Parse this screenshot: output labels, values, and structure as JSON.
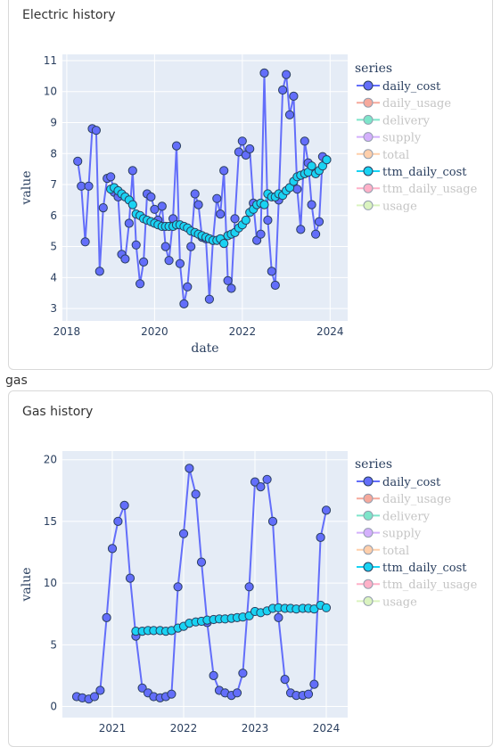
{
  "electric": {
    "title": "Electric history"
  },
  "gas": {
    "section_label": "gas",
    "title": "Gas history"
  },
  "legend": {
    "title": "series",
    "items": [
      {
        "name": "daily_cost",
        "color": "#636efa",
        "active": true
      },
      {
        "name": "daily_usage",
        "color": "#ef553b",
        "active": false
      },
      {
        "name": "delivery",
        "color": "#00cc96",
        "active": false
      },
      {
        "name": "supply",
        "color": "#ab63fa",
        "active": false
      },
      {
        "name": "total",
        "color": "#ffa15a",
        "active": false
      },
      {
        "name": "ttm_daily_cost",
        "color": "#19d3f3",
        "active": true
      },
      {
        "name": "ttm_daily_usage",
        "color": "#ff6692",
        "active": false
      },
      {
        "name": "usage",
        "color": "#b6e880",
        "active": false
      }
    ]
  },
  "chart_data": [
    {
      "type": "line",
      "title": "Electric history",
      "xlabel": "date",
      "ylabel": "value",
      "xlim": [
        2017.9,
        2024.4
      ],
      "ylim": [
        2.6,
        11.2
      ],
      "xticks": [
        2018,
        2020,
        2022,
        2024
      ],
      "yticks": [
        3,
        4,
        5,
        6,
        7,
        8,
        9,
        10,
        11
      ],
      "plot_bg": "#e5ecf6",
      "legend_position": "right",
      "series": [
        {
          "name": "daily_cost",
          "color": "#636efa",
          "x": [
            2018.25,
            2018.33,
            2018.42,
            2018.5,
            2018.58,
            2018.67,
            2018.75,
            2018.83,
            2018.92,
            2019.0,
            2019.08,
            2019.17,
            2019.25,
            2019.33,
            2019.42,
            2019.5,
            2019.58,
            2019.67,
            2019.75,
            2019.83,
            2019.92,
            2020.0,
            2020.08,
            2020.17,
            2020.25,
            2020.33,
            2020.42,
            2020.5,
            2020.58,
            2020.67,
            2020.75,
            2020.83,
            2020.92,
            2021.0,
            2021.08,
            2021.17,
            2021.25,
            2021.33,
            2021.42,
            2021.5,
            2021.58,
            2021.67,
            2021.75,
            2021.83,
            2021.92,
            2022.0,
            2022.08,
            2022.17,
            2022.25,
            2022.33,
            2022.42,
            2022.5,
            2022.58,
            2022.67,
            2022.75,
            2022.83,
            2022.92,
            2023.0,
            2023.08,
            2023.17,
            2023.25,
            2023.33,
            2023.42,
            2023.5,
            2023.58,
            2023.67,
            2023.75,
            2023.83,
            2023.92
          ],
          "values": [
            7.75,
            6.95,
            5.15,
            6.95,
            8.8,
            8.75,
            4.2,
            6.25,
            7.2,
            7.25,
            6.75,
            6.6,
            4.75,
            4.6,
            5.75,
            7.45,
            5.05,
            3.8,
            4.5,
            6.7,
            6.6,
            6.2,
            5.85,
            6.3,
            5.0,
            4.55,
            5.9,
            8.25,
            4.45,
            3.15,
            3.7,
            5.0,
            6.7,
            6.35,
            5.3,
            5.25,
            3.3,
            5.2,
            6.55,
            6.05,
            7.45,
            3.9,
            3.65,
            5.9,
            8.05,
            8.4,
            7.95,
            8.15,
            6.4,
            5.2,
            5.4,
            10.6,
            5.85,
            4.2,
            3.75,
            6.5,
            10.05,
            10.55,
            9.25,
            9.85,
            6.85,
            5.55,
            8.4,
            7.7,
            6.35,
            5.4,
            5.8,
            7.9,
            7.8
          ]
        },
        {
          "name": "ttm_daily_cost",
          "color": "#19d3f3",
          "x": [
            2019.0,
            2019.08,
            2019.17,
            2019.25,
            2019.33,
            2019.42,
            2019.5,
            2019.58,
            2019.67,
            2019.75,
            2019.83,
            2019.92,
            2020.0,
            2020.08,
            2020.17,
            2020.25,
            2020.33,
            2020.42,
            2020.5,
            2020.58,
            2020.67,
            2020.75,
            2020.83,
            2020.92,
            2021.0,
            2021.08,
            2021.17,
            2021.25,
            2021.33,
            2021.42,
            2021.5,
            2021.58,
            2021.67,
            2021.75,
            2021.83,
            2021.92,
            2022.0,
            2022.08,
            2022.17,
            2022.25,
            2022.33,
            2022.42,
            2022.5,
            2022.58,
            2022.67,
            2022.75,
            2022.83,
            2022.92,
            2023.0,
            2023.08,
            2023.17,
            2023.25,
            2023.33,
            2023.42,
            2023.5,
            2023.58,
            2023.67,
            2023.75,
            2023.83,
            2023.92
          ],
          "values": [
            6.85,
            6.9,
            6.8,
            6.7,
            6.6,
            6.5,
            6.35,
            6.05,
            6.0,
            5.9,
            5.85,
            5.8,
            5.75,
            5.7,
            5.65,
            5.65,
            5.65,
            5.65,
            5.7,
            5.7,
            5.65,
            5.6,
            5.5,
            5.45,
            5.4,
            5.35,
            5.3,
            5.25,
            5.2,
            5.2,
            5.25,
            5.1,
            5.35,
            5.4,
            5.45,
            5.6,
            5.7,
            5.85,
            6.1,
            6.2,
            6.35,
            6.4,
            6.35,
            6.7,
            6.6,
            6.6,
            6.7,
            6.65,
            6.8,
            6.9,
            7.1,
            7.25,
            7.3,
            7.35,
            7.4,
            7.6,
            7.35,
            7.45,
            7.6,
            7.8
          ]
        }
      ]
    },
    {
      "type": "line",
      "title": "Gas history",
      "xlabel": "",
      "ylabel": "value",
      "xlim": [
        2020.3,
        2024.3
      ],
      "ylim": [
        -0.9,
        20.7
      ],
      "xticks": [
        2021,
        2022,
        2023,
        2024
      ],
      "yticks": [
        0,
        5,
        10,
        15,
        20
      ],
      "plot_bg": "#e5ecf6",
      "legend_position": "right",
      "series": [
        {
          "name": "daily_cost",
          "color": "#636efa",
          "x": [
            2020.5,
            2020.58,
            2020.67,
            2020.75,
            2020.83,
            2020.92,
            2021.0,
            2021.08,
            2021.17,
            2021.25,
            2021.33,
            2021.42,
            2021.5,
            2021.58,
            2021.67,
            2021.75,
            2021.83,
            2021.92,
            2022.0,
            2022.08,
            2022.17,
            2022.25,
            2022.33,
            2022.42,
            2022.5,
            2022.58,
            2022.67,
            2022.75,
            2022.83,
            2022.92,
            2023.0,
            2023.08,
            2023.17,
            2023.25,
            2023.33,
            2023.42,
            2023.5,
            2023.58,
            2023.67,
            2023.75,
            2023.83,
            2023.92,
            2024.0
          ],
          "values": [
            0.8,
            0.7,
            0.6,
            0.8,
            1.3,
            7.2,
            12.8,
            15.0,
            16.3,
            10.4,
            5.7,
            1.5,
            1.1,
            0.8,
            0.7,
            0.8,
            1.0,
            9.7,
            14.0,
            19.3,
            17.2,
            11.7,
            6.8,
            2.5,
            1.3,
            1.1,
            0.9,
            1.1,
            2.7,
            9.7,
            18.2,
            17.8,
            18.4,
            15.0,
            7.2,
            2.2,
            1.1,
            0.9,
            0.9,
            1.0,
            1.8,
            13.7,
            15.9
          ]
        },
        {
          "name": "ttm_daily_cost",
          "color": "#19d3f3",
          "x": [
            2021.33,
            2021.42,
            2021.5,
            2021.58,
            2021.67,
            2021.75,
            2021.83,
            2021.92,
            2022.0,
            2022.08,
            2022.17,
            2022.25,
            2022.33,
            2022.42,
            2022.5,
            2022.58,
            2022.67,
            2022.75,
            2022.83,
            2022.92,
            2023.0,
            2023.08,
            2023.17,
            2023.25,
            2023.33,
            2023.42,
            2023.5,
            2023.58,
            2023.67,
            2023.75,
            2023.83,
            2023.92,
            2024.0
          ],
          "values": [
            6.1,
            6.1,
            6.15,
            6.15,
            6.15,
            6.1,
            6.15,
            6.35,
            6.5,
            6.75,
            6.85,
            6.9,
            7.0,
            7.05,
            7.1,
            7.1,
            7.15,
            7.2,
            7.25,
            7.35,
            7.7,
            7.6,
            7.75,
            7.95,
            8.0,
            7.95,
            7.95,
            7.9,
            7.95,
            7.95,
            7.9,
            8.2,
            8.0
          ]
        }
      ]
    }
  ]
}
